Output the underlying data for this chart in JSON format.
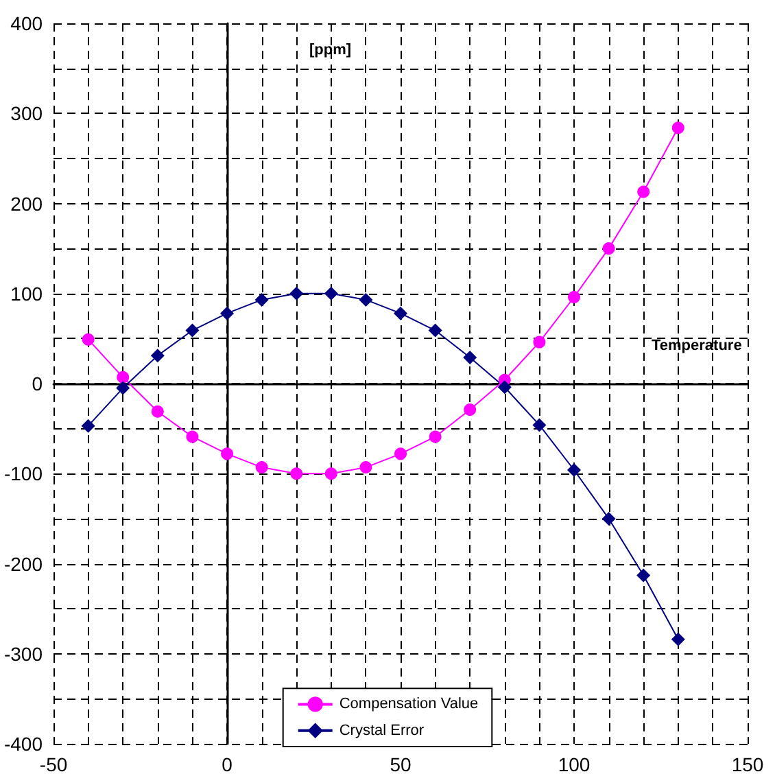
{
  "chart_data": {
    "type": "line",
    "xlabel": "Temperature",
    "ylabel": "[ppm]",
    "x": [
      -40,
      -30,
      -20,
      -10,
      0,
      10,
      20,
      30,
      40,
      50,
      60,
      70,
      80,
      90,
      100,
      110,
      120,
      130
    ],
    "series": [
      {
        "name": "Compensation Value",
        "color": "#ff00ff",
        "marker": "circle",
        "values": [
          49,
          7,
          -31,
          -59,
          -78,
          -93,
          -100,
          -100,
          -93,
          -78,
          -59,
          -29,
          4,
          46,
          96,
          150,
          213,
          284
        ]
      },
      {
        "name": "Crystal Error",
        "color": "#000080",
        "marker": "diamond",
        "values": [
          -47,
          -5,
          31,
          59,
          78,
          93,
          100,
          100,
          93,
          78,
          59,
          29,
          -4,
          -46,
          -96,
          -150,
          -213,
          -284
        ]
      }
    ],
    "xlim": [
      -50,
      150
    ],
    "xticks": [
      -50,
      {
        "value": -40,
        "label": null
      },
      {
        "value": -30,
        "label": null
      },
      {
        "value": -20,
        "label": null
      },
      {
        "value": -10,
        "label": null
      },
      0,
      {
        "value": 10,
        "label": null
      },
      {
        "value": 20,
        "label": null
      },
      {
        "value": 30,
        "label": null
      },
      {
        "value": 40,
        "label": null
      },
      50,
      {
        "value": 60,
        "label": null
      },
      {
        "value": 70,
        "label": null
      },
      {
        "value": 80,
        "label": null
      },
      {
        "value": 90,
        "label": null
      },
      100,
      {
        "value": 110,
        "label": null
      },
      {
        "value": 120,
        "label": null
      },
      {
        "value": 130,
        "label": null
      },
      {
        "value": 140,
        "label": null
      },
      150
    ],
    "ylim": [
      -400,
      400
    ],
    "yticks": [
      -400,
      {
        "value": -350,
        "label": null
      },
      -300,
      {
        "value": -250,
        "label": null
      },
      -200,
      {
        "value": -150,
        "label": null
      },
      -100,
      {
        "value": -50,
        "label": null
      },
      0,
      {
        "value": 50,
        "label": null
      },
      100,
      {
        "value": 150,
        "label": null
      },
      200,
      {
        "value": 250,
        "label": null
      },
      300,
      {
        "value": 350,
        "label": null
      },
      400
    ],
    "grid": true,
    "legend": "bottom",
    "line_style": "solid"
  }
}
